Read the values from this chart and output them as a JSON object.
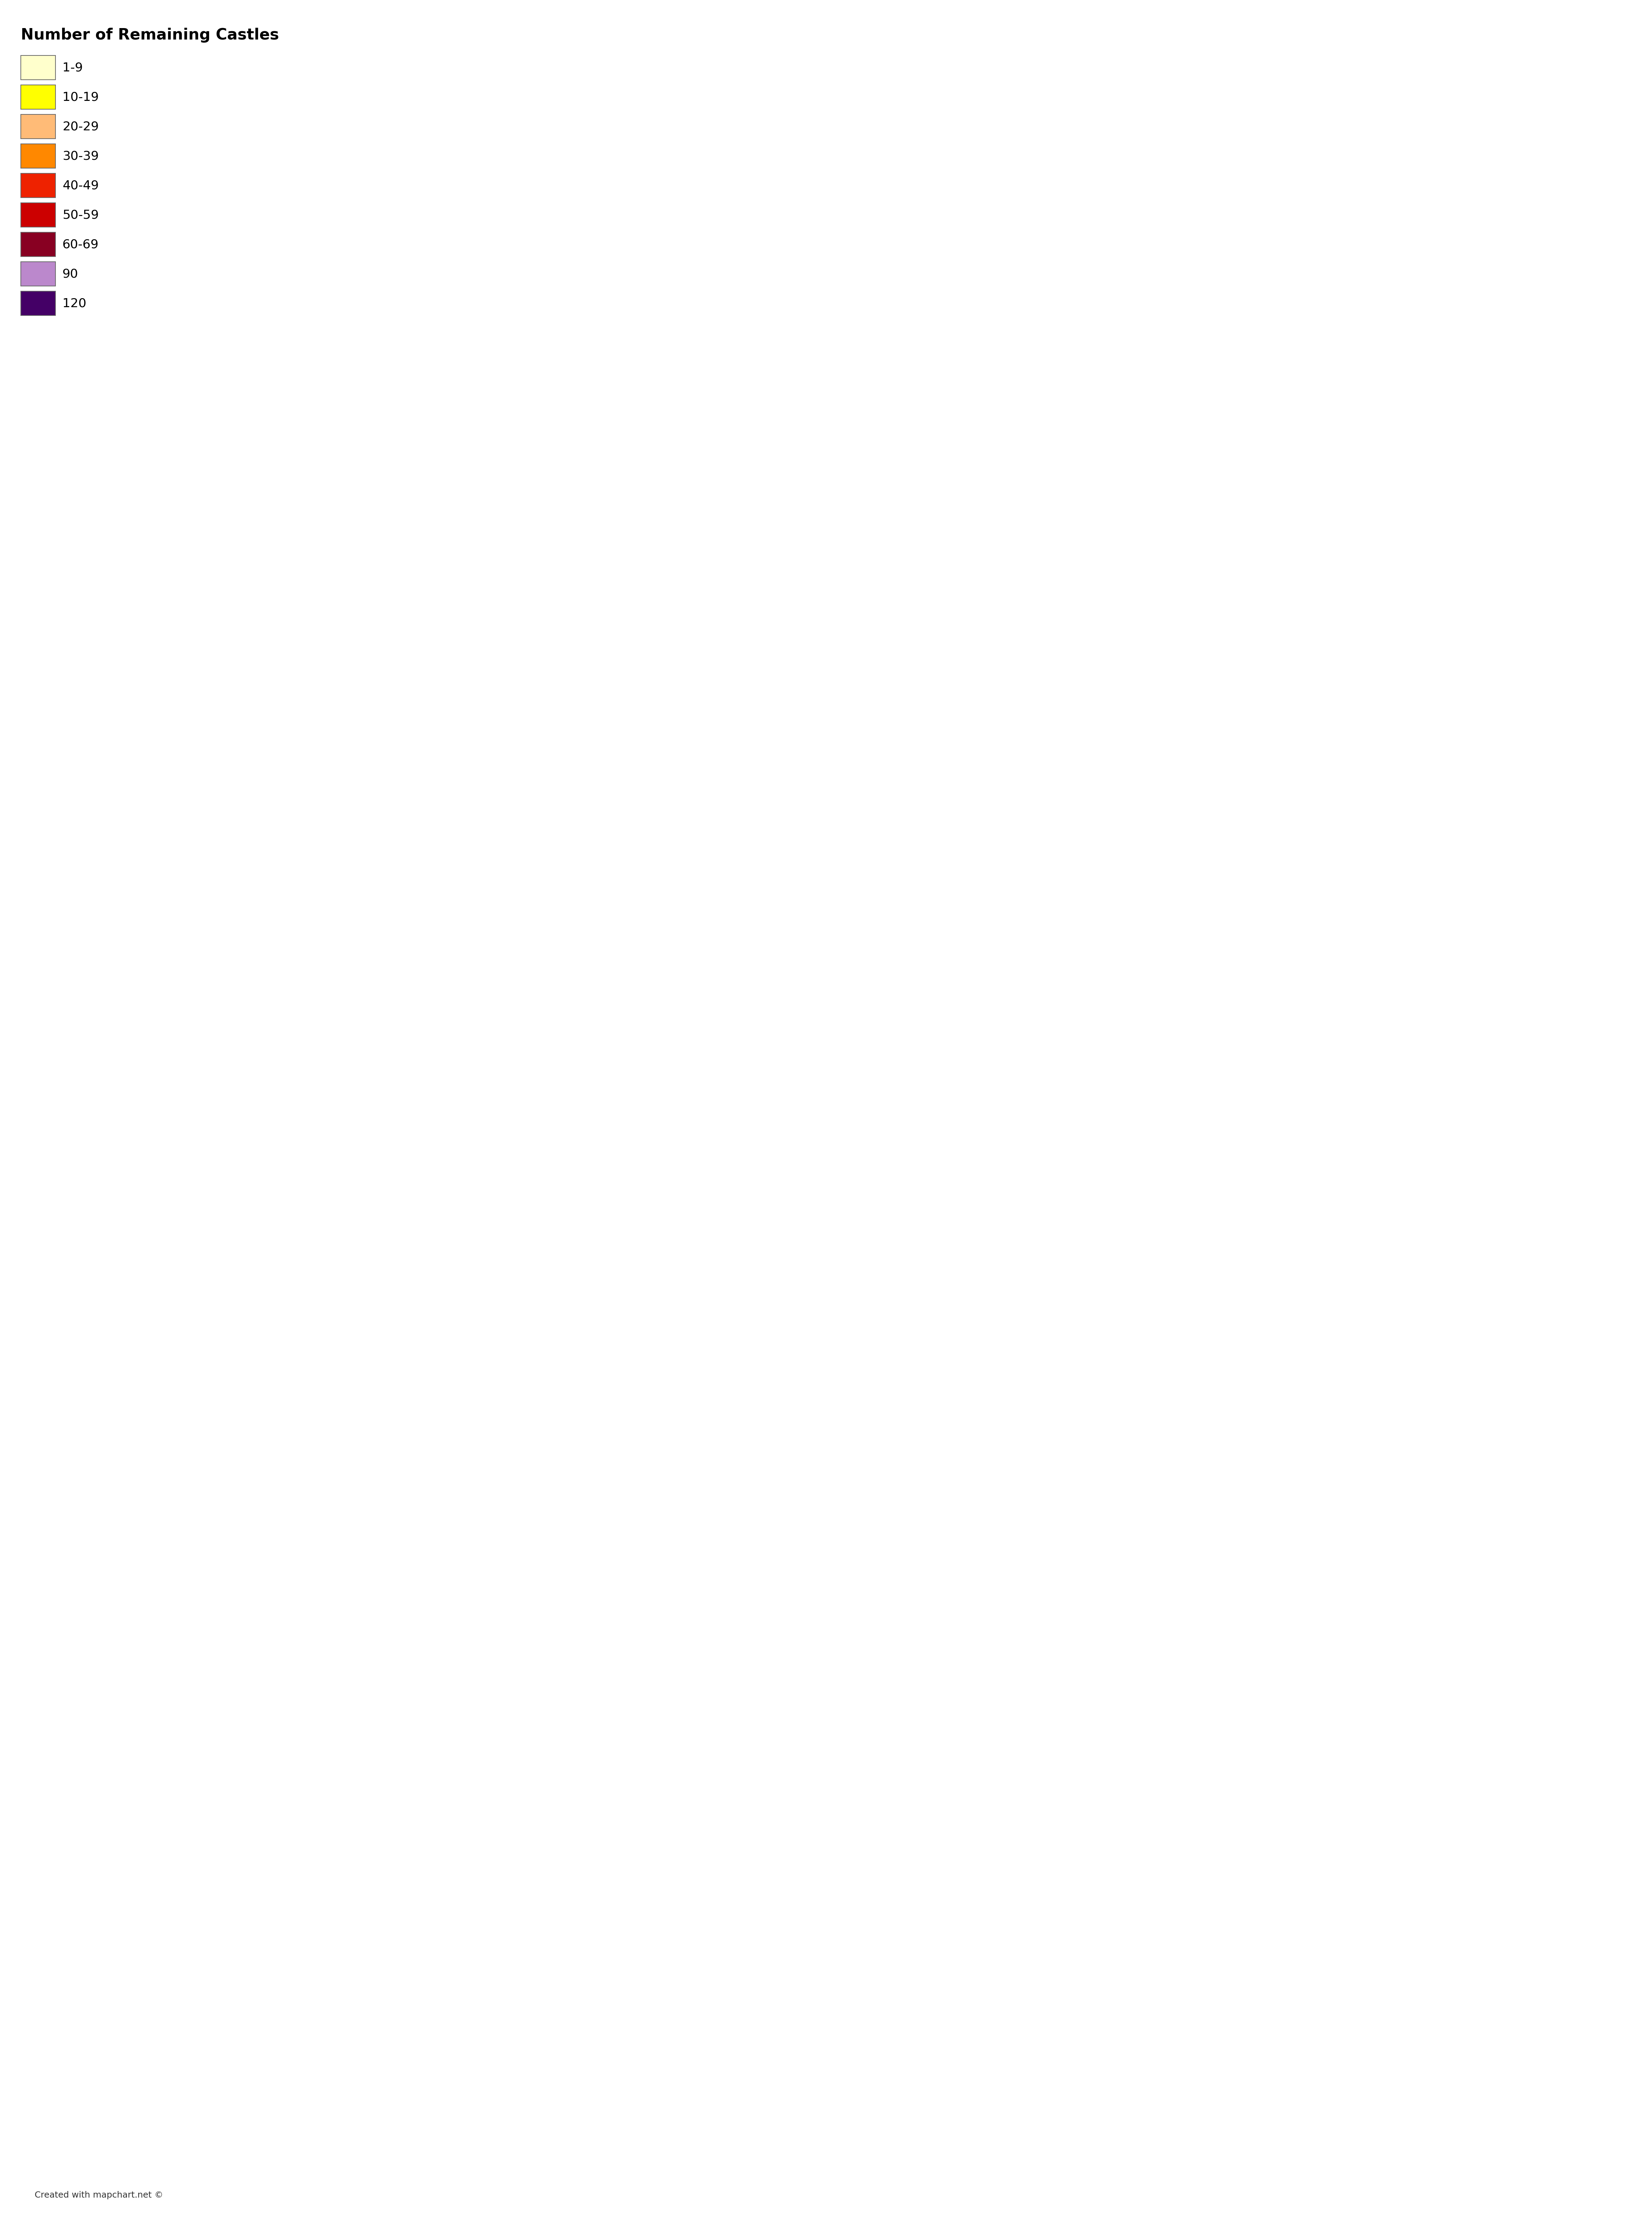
{
  "title": "Number of Remaining Castles",
  "legend_entries": [
    {
      "label": "1-9",
      "color": "#FFFFCC"
    },
    {
      "label": "10-19",
      "color": "#FFFF00"
    },
    {
      "label": "20-29",
      "color": "#FFBB77"
    },
    {
      "label": "30-39",
      "color": "#FF8800"
    },
    {
      "label": "40-49",
      "color": "#EE2200"
    },
    {
      "label": "50-59",
      "color": "#CC0000"
    },
    {
      "label": "60-69",
      "color": "#880022"
    },
    {
      "label": "90",
      "color": "#BB88CC"
    },
    {
      "label": "120",
      "color": "#440066"
    }
  ],
  "region_colors": {
    "Shetland Islands": "#FFFF00",
    "Orkney Islands": "#FFFFCC",
    "Western Isles": "#FFFF00",
    "Highland": "#FFBB77",
    "Aberdeenshire": "#EE2200",
    "Moray": "#FFFF00",
    "Angus": "#FFFF00",
    "Perth and Kinross": "#FFBB77",
    "Argyll and Bute": "#EE2200",
    "Stirling": "#BB88CC",
    "Clackmannanshire": "#FFFF00",
    "Fife": "#EE2200",
    "North Ayrshire": "#FF8800",
    "East Ayrshire": "#FFFF00",
    "South Ayrshire": "#FFFF00",
    "Dumfries and Galloway": "#FFBB77",
    "Scottish Borders": "#FFFF00",
    "East Lothian": "#FFFF00",
    "Midlothian": "#FFFF00",
    "City of Edinburgh": "#FFFF00",
    "West Lothian": "#FFFF00",
    "Falkirk": "#FFFF00",
    "North Lanarkshire": "#FFFF00",
    "South Lanarkshire": "#FFFF00",
    "City of Glasgow": "#FFFF00",
    "East Dunbartonshire": "#FFFF00",
    "West Dunbartonshire": "#FFFF00",
    "Renfrewshire": "#FFFF00",
    "East Renfrewshire": "#FFFF00",
    "Inverclyde": "#FFFF00",
    "Dundee City": "#FFFF00",
    "Aberdeen City": "#FFFF00",
    "Northumberland": "#880022",
    "Tyne and Wear": "#FFFF00",
    "Durham": "#FF8800",
    "Cumbria": "#FF8800",
    "North Yorkshire": "#FF8800",
    "East Riding of Yorkshire": "#FFFF00",
    "West Yorkshire": "#FFFF00",
    "South Yorkshire": "#FFFF00",
    "Greater Manchester": "#FFFF00",
    "Merseyside": "#FFFF00",
    "Lancashire": "#FFFF00",
    "Cheshire": "#FFFF00",
    "Derbyshire": "#FFFF00",
    "Nottinghamshire": "#FFFFCC",
    "Lincolnshire": "#FFFFCC",
    "Norfolk": "#FFFFCC",
    "Suffolk": "#FFFFCC",
    "Essex": "#FFFFCC",
    "Kent": "#FFFFCC",
    "East Sussex": "#FFFFCC",
    "West Sussex": "#FFFFCC",
    "Surrey": "#FFFFCC",
    "Hampshire": "#FFFFCC",
    "Dorset": "#FFFF00",
    "Somerset": "#FFFFCC",
    "Devon": "#FFBB77",
    "Cornwall": "#FFFF00",
    "Wiltshire": "#FFFFCC",
    "Gloucestershire": "#FFFFCC",
    "Oxfordshire": "#FFFFCC",
    "Berkshire": "#FFFFCC",
    "Buckinghamshire": "#FFFFCC",
    "Hertfordshire": "#FFFFCC",
    "Bedfordshire": "#FFFFCC",
    "Cambridgeshire": "#FFFFCC",
    "Northamptonshire": "#FFFFCC",
    "Leicestershire": "#FFFFCC",
    "Rutland": "#FFFFCC",
    "Warwickshire": "#FFFFCC",
    "Staffordshire": "#FFFFCC",
    "Shropshire": "#FFFF00",
    "Herefordshire": "#FFFF00",
    "Worcestershire": "#FFFFCC",
    "Wales": "#FF8800",
    "Gwynedd": "#EE2200",
    "Conwy": "#FFFF00",
    "Denbighshire": "#FFFF00",
    "Flintshire": "#FFFF00",
    "Wrexham": "#FFFF00",
    "Powys": "#FFFF00",
    "Ceredigion": "#FFFF00",
    "Pembrokeshire": "#EE2200",
    "Carmarthenshire": "#FFFF00",
    "Swansea": "#FFFF00",
    "Neath Port Talbot": "#FFFF00",
    "Bridgend": "#FFFF00",
    "Vale of Glamorgan": "#FFFF00",
    "Cardiff": "#FFFF00",
    "Rhondda Cynon Taf": "#FFFF00",
    "Merthyr Tydfil": "#FFFF00",
    "Caerphilly": "#FFFF00",
    "Blaenau Gwent": "#FFFF00",
    "Torfaen": "#FFFF00",
    "Monmouthshire": "#FFFF00",
    "Newport": "#FFFF00",
    "Anglesey": "#FFFF00",
    "Donegal": "#FFFF00",
    "Leitrim": "#FFFF00",
    "Sligo": "#FFFF00",
    "Mayo": "#FFFF00",
    "Roscommon": "#FFFF00",
    "Galway": "#FFBB77",
    "Clare": "#FFFF00",
    "Limerick": "#FFBB77",
    "Kerry": "#EE2200",
    "Cork": "#EE2200",
    "Tipperary": "#FFBB77",
    "Waterford": "#FFFF00",
    "Kilkenny": "#FFFF00",
    "Wexford": "#FFFF00",
    "Carlow": "#FFFF00",
    "Wicklow": "#FFFF00",
    "Dublin": "#CC0000",
    "Kildare": "#FFFF00",
    "Laois": "#FFFF00",
    "Offaly": "#FFFF00",
    "Westmeath": "#FFFF00",
    "Longford": "#FFFF00",
    "Meath": "#FFFF00",
    "Louth": "#FFFF00",
    "Monaghan": "#FFFF00",
    "Cavan": "#FFFF00",
    "Fermanagh": "#FFFF00",
    "Tyrone": "#FFFF00",
    "Londonderry": "#FFFF00",
    "Antrim": "#FFFF00",
    "Down": "#FFFF00",
    "Armagh": "#FFFF00",
    "Cork City": "#440066"
  },
  "background_color": "#FFFFFF",
  "border_color": "#333333",
  "border_linewidth": 0.5,
  "title_fontsize": 32,
  "legend_fontsize": 26,
  "credit_text": "Created with mapchart.net ©",
  "credit_fontsize": 18
}
